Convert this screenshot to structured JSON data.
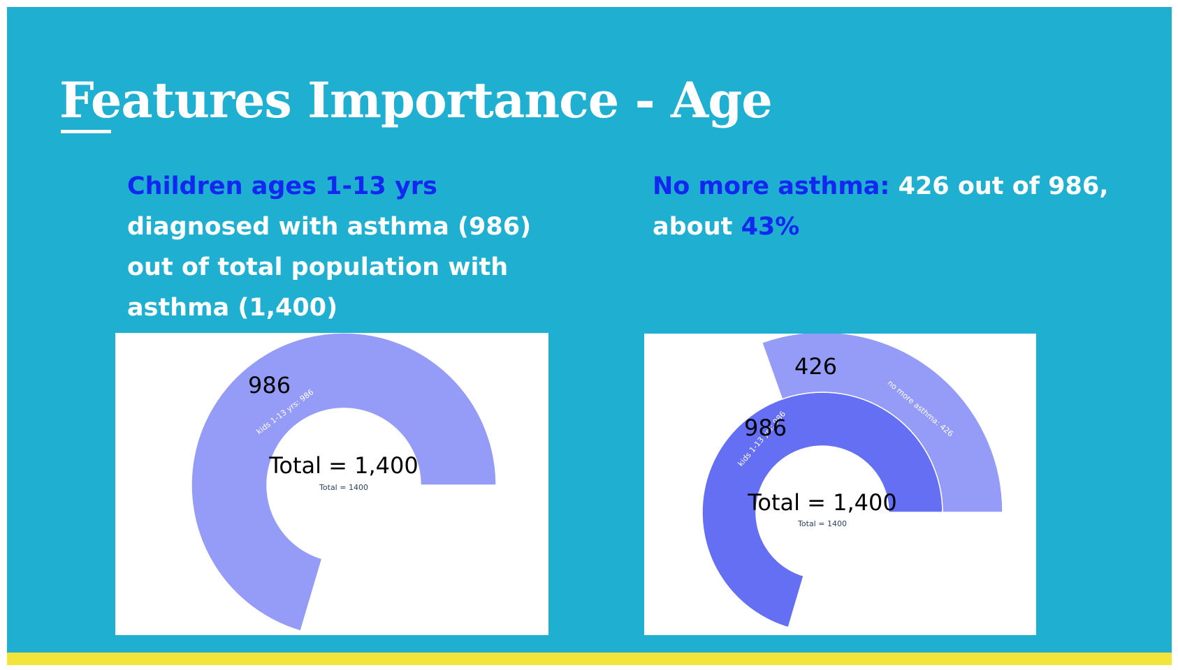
{
  "slide": {
    "title": "Features Importance - Age",
    "left_text": {
      "highlight": "Children ages 1-13 yrs",
      "rest": " diagnosed with asthma (986) out of total population with asthma (1,400)"
    },
    "right_text": {
      "highlight1": "No more asthma:",
      "mid": " 426 out of 986, about ",
      "highlight2": "43%"
    },
    "colors": {
      "background": "#1FAFD1",
      "accent_bar": "#F3E43C",
      "highlight_text": "#1228F0",
      "light_series": "#959CF7",
      "dark_series": "#646FF3"
    }
  },
  "chart_data": [
    {
      "type": "sunburst",
      "total": 1400,
      "center_label": "Total = 1,400",
      "center_small_label": "Total = 1400",
      "rings": [
        {
          "segments": [
            {
              "name": "kids 1-13 yrs",
              "value": 986,
              "slice_label": "kids 1-13 yrs: 986",
              "big_label": "986",
              "color": "#959CF7"
            }
          ]
        }
      ]
    },
    {
      "type": "sunburst",
      "total": 1400,
      "center_label": "Total = 1,400",
      "center_small_label": "Total = 1400",
      "rings": [
        {
          "segments": [
            {
              "name": "kids 1-13 yrs",
              "value": 986,
              "slice_label": "kids 1-13 yrs: 986",
              "big_label": "986",
              "color": "#646FF3"
            }
          ]
        },
        {
          "segments": [
            {
              "name": "no more asthma",
              "value": 426,
              "slice_label": "no more asthma: 426",
              "big_label": "426",
              "color": "#959CF7"
            }
          ]
        }
      ]
    }
  ]
}
